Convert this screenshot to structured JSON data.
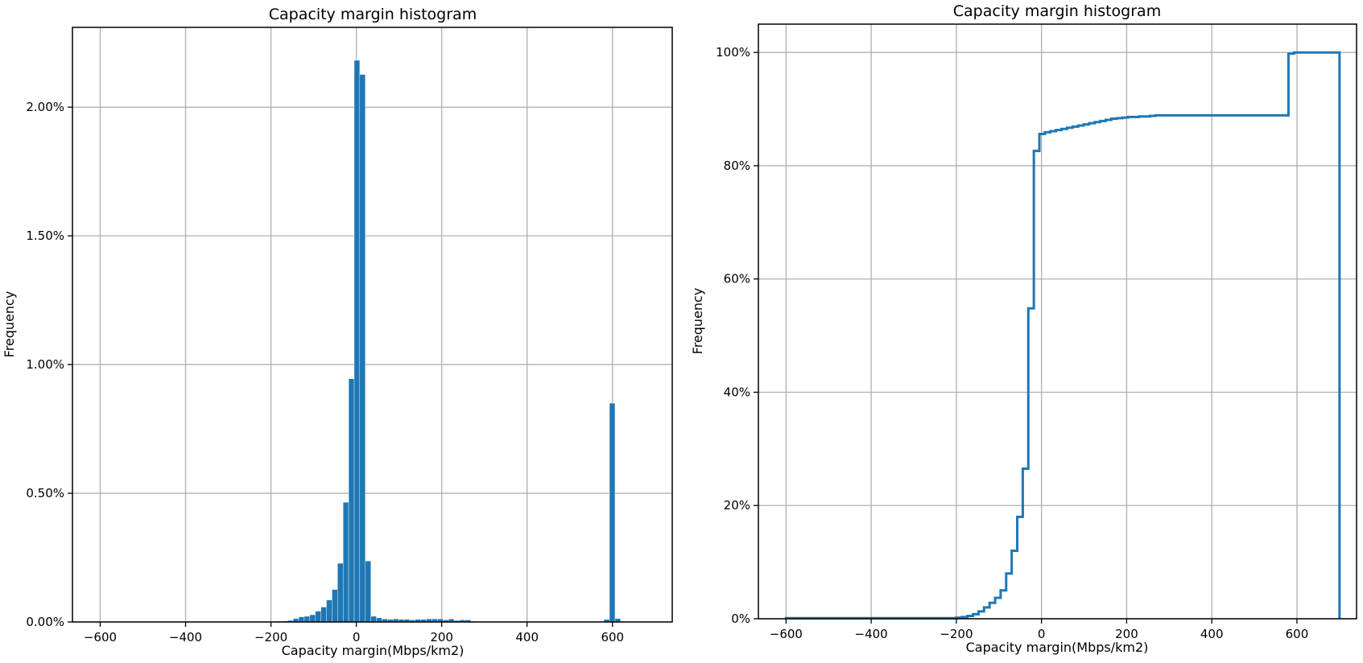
{
  "chart_data": [
    {
      "type": "bar",
      "title": "Capacity margin histogram",
      "xlabel": "Capacity margin(Mbps/km2)",
      "ylabel": "Frequency",
      "xlim": [
        -665,
        740
      ],
      "ylim": [
        0,
        0.0231
      ],
      "xticks": [
        -600,
        -400,
        -200,
        0,
        200,
        400,
        600
      ],
      "xtick_labels": [
        "−600",
        "−400",
        "−200",
        "0",
        "200",
        "400",
        "600"
      ],
      "yticks": [
        0,
        0.005,
        0.01,
        0.015,
        0.02
      ],
      "ytick_labels": [
        "0.00%",
        "0.50%",
        "1.00%",
        "1.50%",
        "2.00%"
      ],
      "grid": true,
      "legend": "none",
      "bar_color": "#1f77b4",
      "bin_width": 13,
      "bins": [
        {
          "x": -200,
          "y": 2e-05
        },
        {
          "x": -187,
          "y": 3e-05
        },
        {
          "x": -174,
          "y": 4e-05
        },
        {
          "x": -161,
          "y": 6e-05
        },
        {
          "x": -148,
          "y": 0.00013
        },
        {
          "x": -135,
          "y": 0.0002
        },
        {
          "x": -122,
          "y": 0.00022
        },
        {
          "x": -109,
          "y": 0.00028
        },
        {
          "x": -96,
          "y": 0.00042
        },
        {
          "x": -83,
          "y": 0.00058
        },
        {
          "x": -70,
          "y": 0.00085
        },
        {
          "x": -57,
          "y": 0.00126
        },
        {
          "x": -44,
          "y": 0.00228
        },
        {
          "x": -31,
          "y": 0.00465
        },
        {
          "x": -18,
          "y": 0.00945
        },
        {
          "x": -5,
          "y": 0.02182
        },
        {
          "x": 8,
          "y": 0.02127
        },
        {
          "x": 21,
          "y": 0.00237
        },
        {
          "x": 34,
          "y": 0.00022
        },
        {
          "x": 47,
          "y": 0.00016
        },
        {
          "x": 60,
          "y": 0.00012
        },
        {
          "x": 73,
          "y": 0.0001
        },
        {
          "x": 86,
          "y": 0.00012
        },
        {
          "x": 99,
          "y": 0.0001
        },
        {
          "x": 112,
          "y": 0.0001
        },
        {
          "x": 125,
          "y": 8e-05
        },
        {
          "x": 138,
          "y": 0.0001
        },
        {
          "x": 151,
          "y": 0.0001
        },
        {
          "x": 164,
          "y": 0.00012
        },
        {
          "x": 177,
          "y": 0.00012
        },
        {
          "x": 190,
          "y": 0.00012
        },
        {
          "x": 203,
          "y": 8e-05
        },
        {
          "x": 216,
          "y": 0.00012
        },
        {
          "x": 229,
          "y": 6e-05
        },
        {
          "x": 242,
          "y": 8e-05
        },
        {
          "x": 255,
          "y": 8e-05
        },
        {
          "x": 268,
          "y": 3e-05
        },
        {
          "x": 580,
          "y": 0.0001
        },
        {
          "x": 593,
          "y": 0.0085
        },
        {
          "x": 606,
          "y": 0.00013
        }
      ]
    },
    {
      "type": "line",
      "title": "Capacity margin histogram",
      "xlabel": "Capacity margin(Mbps/km2)",
      "ylabel": "Frequency",
      "xlim": [
        -665,
        740
      ],
      "ylim": [
        0,
        1.05
      ],
      "xticks": [
        -600,
        -400,
        -200,
        0,
        200,
        400,
        600
      ],
      "xtick_labels": [
        "−600",
        "−400",
        "−200",
        "0",
        "200",
        "400",
        "600"
      ],
      "yticks": [
        0,
        0.2,
        0.4,
        0.6,
        0.8,
        1.0
      ],
      "ytick_labels": [
        "0%",
        "20%",
        "40%",
        "60%",
        "80%",
        "100%"
      ],
      "grid": true,
      "legend": "none",
      "line_color": "#1f77b4",
      "step_edges": [
        -600,
        -200,
        -187,
        -174,
        -161,
        -148,
        -135,
        -122,
        -109,
        -96,
        -83,
        -70,
        -57,
        -44,
        -31,
        -18,
        -5,
        8,
        21,
        34,
        47,
        60,
        73,
        86,
        99,
        112,
        125,
        138,
        151,
        164,
        177,
        190,
        203,
        216,
        229,
        242,
        255,
        268,
        580,
        593,
        606,
        700
      ],
      "cumulative": [
        0.001,
        0.002,
        0.003,
        0.005,
        0.008,
        0.013,
        0.02,
        0.028,
        0.037,
        0.05,
        0.08,
        0.12,
        0.18,
        0.265,
        0.548,
        0.826,
        0.856,
        0.859,
        0.861,
        0.863,
        0.865,
        0.867,
        0.869,
        0.871,
        0.873,
        0.875,
        0.877,
        0.879,
        0.881,
        0.883,
        0.884,
        0.885,
        0.886,
        0.886,
        0.887,
        0.887,
        0.888,
        0.889,
        0.998,
        1.0,
        1.0
      ]
    }
  ]
}
